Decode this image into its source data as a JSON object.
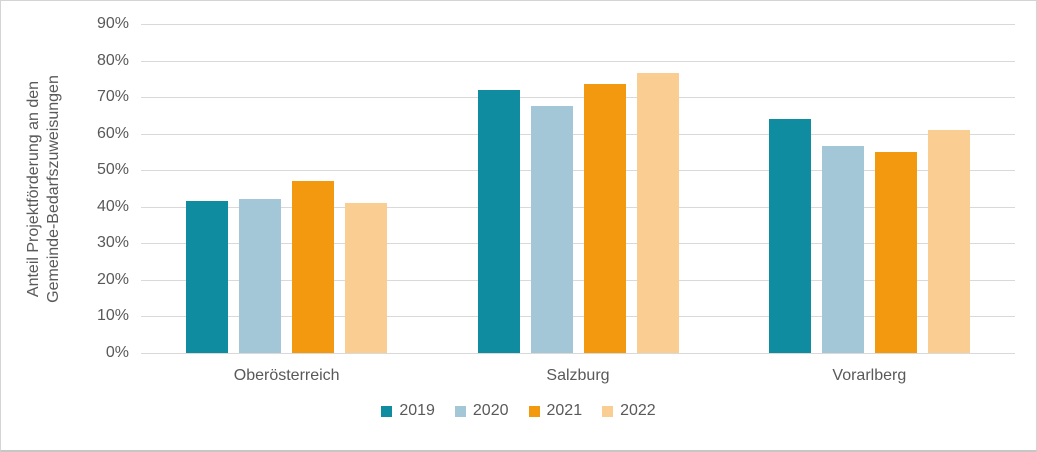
{
  "chart_data": {
    "type": "bar",
    "title": "",
    "ylabel": "Anteil Projektförderung an den Gemeinde-Bedarfszuweisungen",
    "ylabel_lines": [
      "Anteil Projektförderung an den",
      "Gemeinde-Bedarfszuweisungen"
    ],
    "categories": [
      "Oberösterreich",
      "Salzburg",
      "Vorarlberg"
    ],
    "series": [
      {
        "name": "2019",
        "color": "#0F8CA0",
        "values": [
          41.5,
          72.0,
          64.0
        ]
      },
      {
        "name": "2020",
        "color": "#A3C7D6",
        "values": [
          42.0,
          67.5,
          56.5
        ]
      },
      {
        "name": "2021",
        "color": "#F2990F",
        "values": [
          47.0,
          73.5,
          55.0
        ]
      },
      {
        "name": "2022",
        "color": "#FACD92",
        "values": [
          41.0,
          76.5,
          61.0
        ]
      }
    ],
    "ylim": [
      0,
      90
    ],
    "ytick_step": 10,
    "ytick_labels": [
      "0%",
      "10%",
      "20%",
      "30%",
      "40%",
      "50%",
      "60%",
      "70%",
      "80%",
      "90%"
    ],
    "grid": "horizontal",
    "legend_position": "bottom",
    "unit": "%"
  },
  "colors": {
    "text": "#595959",
    "gridline": "#D9D9D9",
    "background": "#FFFFFF",
    "border": "#D4D4D4"
  }
}
